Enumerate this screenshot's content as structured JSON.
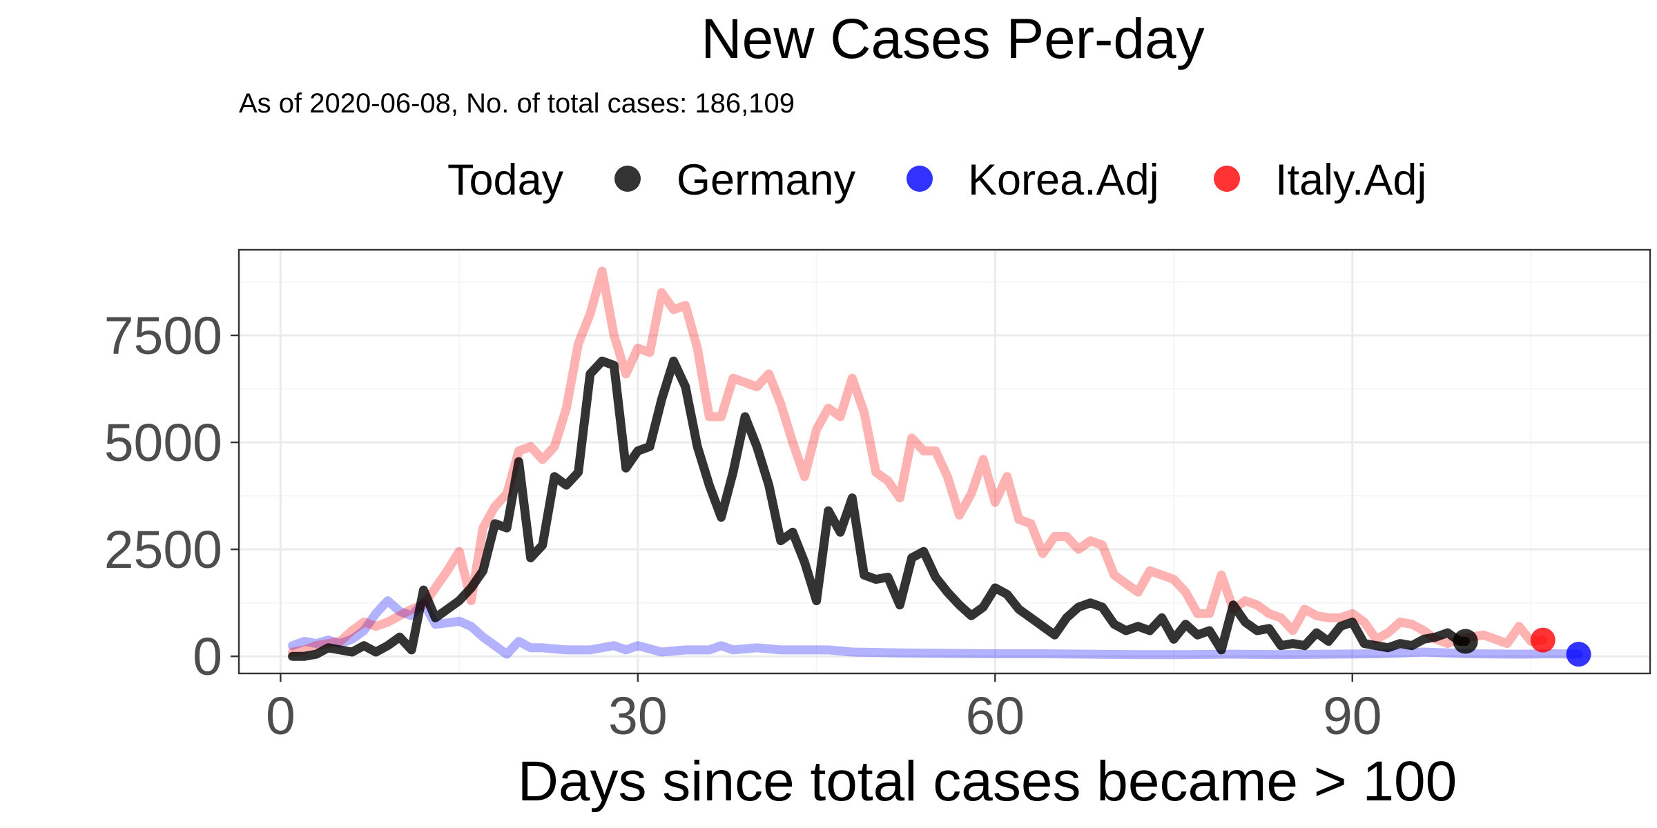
{
  "colors": {
    "germany": "#000000",
    "korea": "#0000ff",
    "italy": "#ff0000"
  },
  "chart_data": {
    "type": "line",
    "title": "New Cases Per-day",
    "subtitle": "As of 2020-06-08, No. of total cases: 186,109",
    "xlabel": "Days since total cases became > 100",
    "ylabel": "",
    "xlim": [
      -3.5,
      115
    ],
    "ylim": [
      -400,
      9500
    ],
    "x_ticks": [
      0,
      30,
      60,
      90
    ],
    "y_ticks": [
      0,
      2500,
      5000,
      7500
    ],
    "grid": true,
    "legend": {
      "position": "top",
      "title": "Today",
      "entries": [
        {
          "label": "Germany",
          "color_key": "germany"
        },
        {
          "label": "Korea.Adj",
          "color_key": "korea"
        },
        {
          "label": "Italy.Adj",
          "color_key": "italy"
        }
      ]
    },
    "series": [
      {
        "name": "Korea.Adj",
        "color_key": "korea",
        "opacity": 0.3,
        "today": {
          "x": 109,
          "y": 50
        },
        "points": [
          [
            1,
            250
          ],
          [
            2,
            350
          ],
          [
            3,
            300
          ],
          [
            4,
            380
          ],
          [
            5,
            300
          ],
          [
            6,
            400
          ],
          [
            7,
            600
          ],
          [
            8,
            1000
          ],
          [
            9,
            1300
          ],
          [
            10,
            1050
          ],
          [
            11,
            950
          ],
          [
            12,
            1250
          ],
          [
            13,
            750
          ],
          [
            14,
            780
          ],
          [
            15,
            820
          ],
          [
            16,
            700
          ],
          [
            17,
            450
          ],
          [
            18,
            250
          ],
          [
            19,
            50
          ],
          [
            20,
            350
          ],
          [
            21,
            200
          ],
          [
            22,
            200
          ],
          [
            24,
            150
          ],
          [
            26,
            150
          ],
          [
            28,
            250
          ],
          [
            29,
            150
          ],
          [
            30,
            250
          ],
          [
            32,
            100
          ],
          [
            34,
            150
          ],
          [
            36,
            150
          ],
          [
            37,
            250
          ],
          [
            38,
            150
          ],
          [
            40,
            200
          ],
          [
            42,
            150
          ],
          [
            46,
            150
          ],
          [
            48,
            100
          ],
          [
            52,
            80
          ],
          [
            56,
            70
          ],
          [
            60,
            60
          ],
          [
            64,
            60
          ],
          [
            68,
            50
          ],
          [
            72,
            40
          ],
          [
            76,
            40
          ],
          [
            80,
            50
          ],
          [
            84,
            40
          ],
          [
            88,
            50
          ],
          [
            92,
            60
          ],
          [
            96,
            100
          ],
          [
            100,
            60
          ],
          [
            104,
            50
          ],
          [
            107,
            60
          ],
          [
            109,
            50
          ]
        ]
      },
      {
        "name": "Italy.Adj",
        "color_key": "italy",
        "opacity": 0.3,
        "today": {
          "x": 106,
          "y": 380
        },
        "points": [
          [
            1,
            100
          ],
          [
            2,
            150
          ],
          [
            3,
            250
          ],
          [
            4,
            300
          ],
          [
            5,
            350
          ],
          [
            6,
            600
          ],
          [
            7,
            800
          ],
          [
            8,
            700
          ],
          [
            9,
            800
          ],
          [
            10,
            950
          ],
          [
            11,
            1100
          ],
          [
            12,
            1200
          ],
          [
            13,
            1600
          ],
          [
            14,
            2000
          ],
          [
            15,
            2450
          ],
          [
            16,
            1300
          ],
          [
            17,
            3000
          ],
          [
            18,
            3500
          ],
          [
            19,
            3800
          ],
          [
            20,
            4800
          ],
          [
            21,
            4900
          ],
          [
            22,
            4600
          ],
          [
            23,
            4900
          ],
          [
            24,
            5800
          ],
          [
            25,
            7300
          ],
          [
            26,
            8000
          ],
          [
            27,
            9000
          ],
          [
            28,
            7500
          ],
          [
            29,
            6600
          ],
          [
            30,
            7200
          ],
          [
            31,
            7100
          ],
          [
            32,
            8500
          ],
          [
            33,
            8100
          ],
          [
            34,
            8200
          ],
          [
            35,
            7200
          ],
          [
            36,
            5600
          ],
          [
            37,
            5600
          ],
          [
            38,
            6500
          ],
          [
            39,
            6400
          ],
          [
            40,
            6300
          ],
          [
            41,
            6600
          ],
          [
            42,
            5900
          ],
          [
            43,
            5000
          ],
          [
            44,
            4200
          ],
          [
            45,
            5300
          ],
          [
            46,
            5800
          ],
          [
            47,
            5600
          ],
          [
            48,
            6500
          ],
          [
            49,
            5700
          ],
          [
            50,
            4300
          ],
          [
            51,
            4100
          ],
          [
            52,
            3700
          ],
          [
            53,
            5100
          ],
          [
            54,
            4800
          ],
          [
            55,
            4800
          ],
          [
            56,
            4200
          ],
          [
            57,
            3300
          ],
          [
            58,
            3800
          ],
          [
            59,
            4600
          ],
          [
            60,
            3600
          ],
          [
            61,
            4200
          ],
          [
            62,
            3200
          ],
          [
            63,
            3100
          ],
          [
            64,
            2400
          ],
          [
            65,
            2800
          ],
          [
            66,
            2800
          ],
          [
            67,
            2500
          ],
          [
            68,
            2700
          ],
          [
            69,
            2600
          ],
          [
            70,
            1900
          ],
          [
            71,
            1700
          ],
          [
            72,
            1500
          ],
          [
            73,
            2000
          ],
          [
            74,
            1900
          ],
          [
            75,
            1800
          ],
          [
            76,
            1500
          ],
          [
            77,
            1000
          ],
          [
            78,
            1000
          ],
          [
            79,
            1900
          ],
          [
            80,
            1100
          ],
          [
            81,
            1300
          ],
          [
            82,
            1200
          ],
          [
            83,
            1000
          ],
          [
            84,
            900
          ],
          [
            85,
            600
          ],
          [
            86,
            1100
          ],
          [
            87,
            950
          ],
          [
            88,
            900
          ],
          [
            89,
            900
          ],
          [
            90,
            1000
          ],
          [
            91,
            800
          ],
          [
            92,
            400
          ],
          [
            93,
            550
          ],
          [
            94,
            800
          ],
          [
            95,
            750
          ],
          [
            96,
            600
          ],
          [
            97,
            400
          ],
          [
            98,
            300
          ],
          [
            99,
            400
          ],
          [
            100,
            450
          ],
          [
            101,
            500
          ],
          [
            102,
            400
          ],
          [
            103,
            300
          ],
          [
            104,
            700
          ],
          [
            105,
            350
          ],
          [
            106,
            380
          ]
        ]
      },
      {
        "name": "Germany",
        "color_key": "germany",
        "opacity": 0.8,
        "today": {
          "x": 99.5,
          "y": 350
        },
        "points": [
          [
            1,
            0
          ],
          [
            2,
            0
          ],
          [
            3,
            50
          ],
          [
            4,
            200
          ],
          [
            5,
            150
          ],
          [
            6,
            100
          ],
          [
            7,
            250
          ],
          [
            8,
            100
          ],
          [
            9,
            250
          ],
          [
            10,
            450
          ],
          [
            11,
            150
          ],
          [
            12,
            1550
          ],
          [
            13,
            900
          ],
          [
            14,
            1100
          ],
          [
            15,
            1300
          ],
          [
            16,
            1600
          ],
          [
            17,
            2000
          ],
          [
            18,
            3100
          ],
          [
            19,
            3000
          ],
          [
            20,
            4550
          ],
          [
            21,
            2300
          ],
          [
            22,
            2600
          ],
          [
            23,
            4200
          ],
          [
            24,
            4000
          ],
          [
            25,
            4300
          ],
          [
            26,
            6600
          ],
          [
            27,
            6900
          ],
          [
            28,
            6800
          ],
          [
            29,
            4400
          ],
          [
            30,
            4800
          ],
          [
            31,
            4900
          ],
          [
            32,
            6000
          ],
          [
            33,
            6900
          ],
          [
            34,
            6300
          ],
          [
            35,
            4900
          ],
          [
            36,
            4000
          ],
          [
            37,
            3250
          ],
          [
            38,
            4300
          ],
          [
            39,
            5600
          ],
          [
            40,
            4900
          ],
          [
            41,
            4000
          ],
          [
            42,
            2700
          ],
          [
            43,
            2900
          ],
          [
            44,
            2200
          ],
          [
            45,
            1300
          ],
          [
            46,
            3400
          ],
          [
            47,
            2900
          ],
          [
            48,
            3700
          ],
          [
            49,
            1900
          ],
          [
            50,
            1800
          ],
          [
            51,
            1850
          ],
          [
            52,
            1200
          ],
          [
            53,
            2300
          ],
          [
            54,
            2450
          ],
          [
            55,
            1850
          ],
          [
            56,
            1500
          ],
          [
            57,
            1200
          ],
          [
            58,
            950
          ],
          [
            59,
            1150
          ],
          [
            60,
            1600
          ],
          [
            61,
            1450
          ],
          [
            62,
            1100
          ],
          [
            63,
            900
          ],
          [
            64,
            700
          ],
          [
            65,
            500
          ],
          [
            66,
            900
          ],
          [
            67,
            1150
          ],
          [
            68,
            1250
          ],
          [
            69,
            1150
          ],
          [
            70,
            750
          ],
          [
            71,
            600
          ],
          [
            72,
            700
          ],
          [
            73,
            600
          ],
          [
            74,
            900
          ],
          [
            75,
            400
          ],
          [
            76,
            750
          ],
          [
            77,
            500
          ],
          [
            78,
            600
          ],
          [
            79,
            150
          ],
          [
            80,
            1200
          ],
          [
            81,
            800
          ],
          [
            82,
            600
          ],
          [
            83,
            650
          ],
          [
            84,
            250
          ],
          [
            85,
            300
          ],
          [
            86,
            250
          ],
          [
            87,
            550
          ],
          [
            88,
            350
          ],
          [
            89,
            700
          ],
          [
            90,
            800
          ],
          [
            91,
            300
          ],
          [
            92,
            250
          ],
          [
            93,
            200
          ],
          [
            94,
            300
          ],
          [
            95,
            250
          ],
          [
            96,
            400
          ],
          [
            97,
            450
          ],
          [
            98,
            550
          ],
          [
            99,
            350
          ],
          [
            99.5,
            350
          ]
        ]
      }
    ]
  }
}
